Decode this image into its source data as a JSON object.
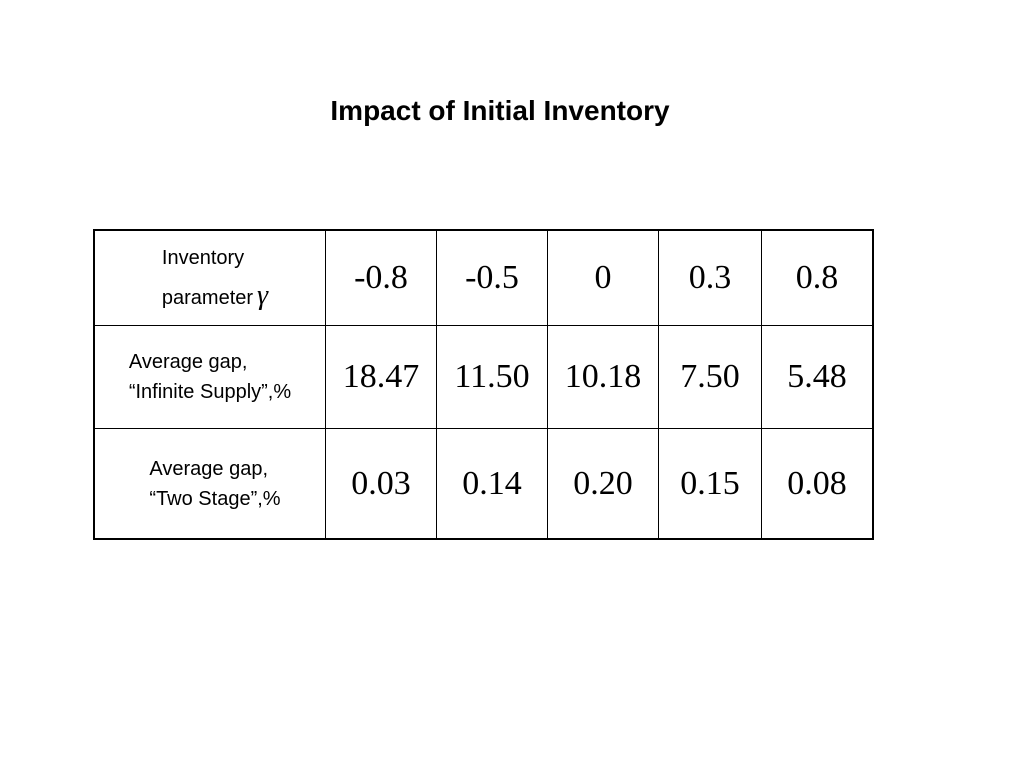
{
  "title": "Impact of Initial Inventory",
  "table": {
    "header_label_line1": "Inventory",
    "header_label_line2": "parameter",
    "header_symbol": "γ",
    "gamma_values": [
      "-0.8",
      "-0.5",
      "0",
      "0.3",
      "0.8"
    ],
    "rows": [
      {
        "label_line1": "Average gap,",
        "label_line2": "“Infinite Supply”,%",
        "values": [
          "18.47",
          "11.50",
          "10.18",
          "7.50",
          "5.48"
        ]
      },
      {
        "label_line1": "Average gap,",
        "label_line2": "“Two Stage”,%",
        "values": [
          "0.03",
          "0.14",
          "0.20",
          "0.15",
          "0.08"
        ]
      }
    ]
  }
}
